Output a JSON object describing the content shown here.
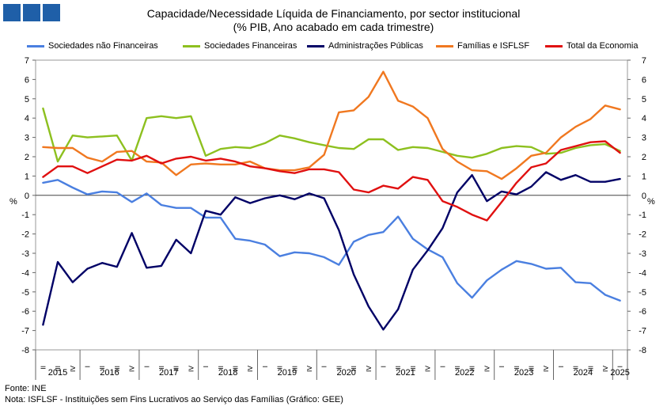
{
  "logo": {
    "name": "gee-logo"
  },
  "chart_data": {
    "type": "line",
    "title_line1": "Capacidade/Necessidade Líquida de Financiamento, por sector institucional",
    "title_line2": "(% PIB, Ano acabado em cada trimestre)",
    "ylabel_left": "%",
    "ylabel_right": "%",
    "ylim": [
      -8,
      7
    ],
    "yticks": [
      -8,
      -7,
      -6,
      -5,
      -4,
      -3,
      -2,
      -1,
      0,
      1,
      2,
      3,
      4,
      5,
      6,
      7
    ],
    "quarter_labels": [
      "II",
      "III",
      "IV",
      "I",
      "II",
      "III",
      "IV",
      "I",
      "II",
      "III",
      "IV",
      "I",
      "II",
      "III",
      "IV",
      "I",
      "II",
      "III",
      "IV",
      "I",
      "II",
      "III",
      "IV",
      "I",
      "II",
      "III",
      "IV",
      "I",
      "II",
      "III",
      "IV",
      "I",
      "II",
      "III",
      "IV",
      "I",
      "II",
      "III",
      "IV",
      "I"
    ],
    "year_labels": [
      "2015",
      "2016",
      "2017",
      "2018",
      "2019",
      "2020",
      "2021",
      "2022",
      "2023",
      "2024",
      "2025"
    ],
    "series": [
      {
        "name": "Sociedades não Financeiras",
        "color": "#4a7fe0",
        "values": [
          0.65,
          0.8,
          0.4,
          0.05,
          0.2,
          0.15,
          -0.35,
          0.1,
          -0.5,
          -0.65,
          -0.65,
          -1.15,
          -1.15,
          -2.25,
          -2.35,
          -2.55,
          -3.15,
          -2.95,
          -3.0,
          -3.2,
          -3.6,
          -2.4,
          -2.05,
          -1.9,
          -1.1,
          -2.25,
          -2.8,
          -3.2,
          -4.55,
          -5.3,
          -4.4,
          -3.85,
          -3.4,
          -3.55,
          -3.8,
          -3.75,
          -4.5,
          -4.55,
          -5.15,
          -5.45
        ]
      },
      {
        "name": "Sociedades Financeiras",
        "color": "#8dc01f",
        "values": [
          4.5,
          1.75,
          3.1,
          3.0,
          3.05,
          3.1,
          1.8,
          4.0,
          4.1,
          4.0,
          4.1,
          2.05,
          2.4,
          2.5,
          2.45,
          2.7,
          3.1,
          2.95,
          2.75,
          2.6,
          2.45,
          2.4,
          2.9,
          2.9,
          2.35,
          2.5,
          2.45,
          2.25,
          2.05,
          1.95,
          2.15,
          2.45,
          2.55,
          2.5,
          2.15,
          2.2,
          2.45,
          2.6,
          2.65,
          2.3
        ]
      },
      {
        "name": "Administrações Públicas",
        "color": "#000066",
        "values": [
          -6.7,
          -3.45,
          -4.5,
          -3.8,
          -3.5,
          -3.7,
          -1.95,
          -3.75,
          -3.65,
          -2.3,
          -3.0,
          -0.8,
          -1.0,
          -0.1,
          -0.4,
          -0.15,
          0.0,
          -0.2,
          0.1,
          -0.15,
          -1.8,
          -4.1,
          -5.75,
          -6.95,
          -5.9,
          -3.85,
          -2.85,
          -1.7,
          0.15,
          1.05,
          -0.3,
          0.2,
          0.05,
          0.45,
          1.2,
          0.8,
          1.05,
          0.7,
          0.7,
          0.85
        ]
      },
      {
        "name": "Famílias e ISFLSF",
        "color": "#f07820",
        "values": [
          2.5,
          2.45,
          2.45,
          1.95,
          1.75,
          2.25,
          2.3,
          1.75,
          1.7,
          1.05,
          1.6,
          1.65,
          1.6,
          1.6,
          1.75,
          1.4,
          1.3,
          1.3,
          1.45,
          2.1,
          4.3,
          4.4,
          5.1,
          6.4,
          4.9,
          4.6,
          4.0,
          2.4,
          1.75,
          1.3,
          1.25,
          0.85,
          1.4,
          2.05,
          2.2,
          3.0,
          3.55,
          3.95,
          4.65,
          4.45
        ]
      },
      {
        "name": "Total da Economia",
        "color": "#e01010",
        "values": [
          0.95,
          1.5,
          1.5,
          1.15,
          1.5,
          1.85,
          1.8,
          2.05,
          1.65,
          1.9,
          2.0,
          1.8,
          1.9,
          1.75,
          1.5,
          1.4,
          1.25,
          1.15,
          1.35,
          1.35,
          1.2,
          0.3,
          0.15,
          0.5,
          0.35,
          0.95,
          0.8,
          -0.3,
          -0.6,
          -1.0,
          -1.3,
          -0.35,
          0.65,
          1.45,
          1.65,
          2.35,
          2.55,
          2.75,
          2.8,
          2.2
        ]
      }
    ]
  },
  "footer": {
    "source": "Fonte: INE",
    "note": "Nota: ISFLSF - Instituições sem Fins Lucrativos ao Serviço das Famílias (Gráfico: GEE)"
  }
}
